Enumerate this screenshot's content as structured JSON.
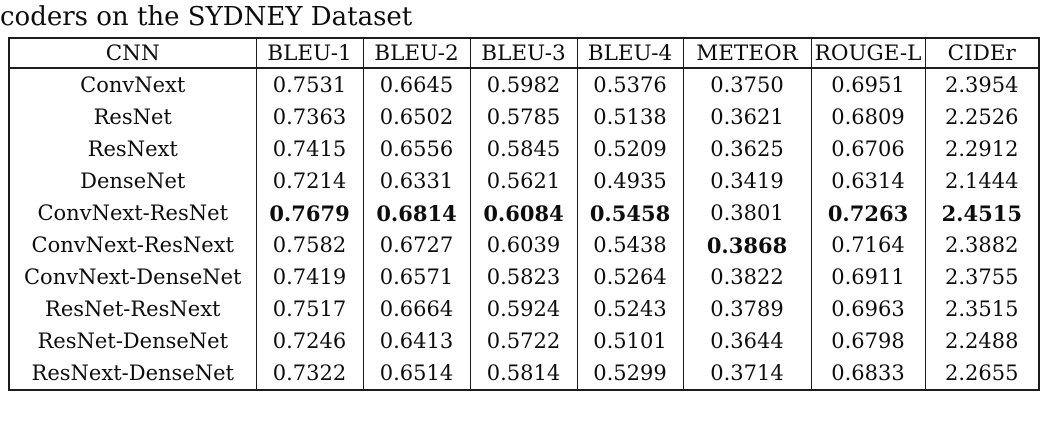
{
  "caption": "coders on the SYDNEY Dataset",
  "colors": {
    "background": "#ffffff",
    "text": "#0d0d0d",
    "border": "#1c1c1c"
  },
  "table": {
    "columns": [
      "CNN",
      "BLEU-1",
      "BLEU-2",
      "BLEU-3",
      "BLEU-4",
      "METEOR",
      "ROUGE-L",
      "CIDEr"
    ],
    "rows": [
      {
        "cnn": "ConvNext",
        "values": [
          "0.7531",
          "0.6645",
          "0.5982",
          "0.5376",
          "0.3750",
          "0.6951",
          "2.3954"
        ],
        "bold": [
          false,
          false,
          false,
          false,
          false,
          false,
          false
        ]
      },
      {
        "cnn": "ResNet",
        "values": [
          "0.7363",
          "0.6502",
          "0.5785",
          "0.5138",
          "0.3621",
          "0.6809",
          "2.2526"
        ],
        "bold": [
          false,
          false,
          false,
          false,
          false,
          false,
          false
        ]
      },
      {
        "cnn": "ResNext",
        "values": [
          "0.7415",
          "0.6556",
          "0.5845",
          "0.5209",
          "0.3625",
          "0.6706",
          "2.2912"
        ],
        "bold": [
          false,
          false,
          false,
          false,
          false,
          false,
          false
        ]
      },
      {
        "cnn": "DenseNet",
        "values": [
          "0.7214",
          "0.6331",
          "0.5621",
          "0.4935",
          "0.3419",
          "0.6314",
          "2.1444"
        ],
        "bold": [
          false,
          false,
          false,
          false,
          false,
          false,
          false
        ]
      },
      {
        "cnn": "ConvNext-ResNet",
        "values": [
          "0.7679",
          "0.6814",
          "0.6084",
          "0.5458",
          "0.3801",
          "0.7263",
          "2.4515"
        ],
        "bold": [
          true,
          true,
          true,
          true,
          false,
          true,
          true
        ]
      },
      {
        "cnn": "ConvNext-ResNext",
        "values": [
          "0.7582",
          "0.6727",
          "0.6039",
          "0.5438",
          "0.3868",
          "0.7164",
          "2.3882"
        ],
        "bold": [
          false,
          false,
          false,
          false,
          true,
          false,
          false
        ]
      },
      {
        "cnn": "ConvNext-DenseNet",
        "values": [
          "0.7419",
          "0.6571",
          "0.5823",
          "0.5264",
          "0.3822",
          "0.6911",
          "2.3755"
        ],
        "bold": [
          false,
          false,
          false,
          false,
          false,
          false,
          false
        ]
      },
      {
        "cnn": "ResNet-ResNext",
        "values": [
          "0.7517",
          "0.6664",
          "0.5924",
          "0.5243",
          "0.3789",
          "0.6963",
          "2.3515"
        ],
        "bold": [
          false,
          false,
          false,
          false,
          false,
          false,
          false
        ]
      },
      {
        "cnn": "ResNet-DenseNet",
        "values": [
          "0.7246",
          "0.6413",
          "0.5722",
          "0.5101",
          "0.3644",
          "0.6798",
          "2.2488"
        ],
        "bold": [
          false,
          false,
          false,
          false,
          false,
          false,
          false
        ]
      },
      {
        "cnn": "ResNext-DenseNet",
        "values": [
          "0.7322",
          "0.6514",
          "0.5814",
          "0.5299",
          "0.3714",
          "0.6833",
          "2.2655"
        ],
        "bold": [
          false,
          false,
          false,
          false,
          false,
          false,
          false
        ]
      }
    ]
  }
}
